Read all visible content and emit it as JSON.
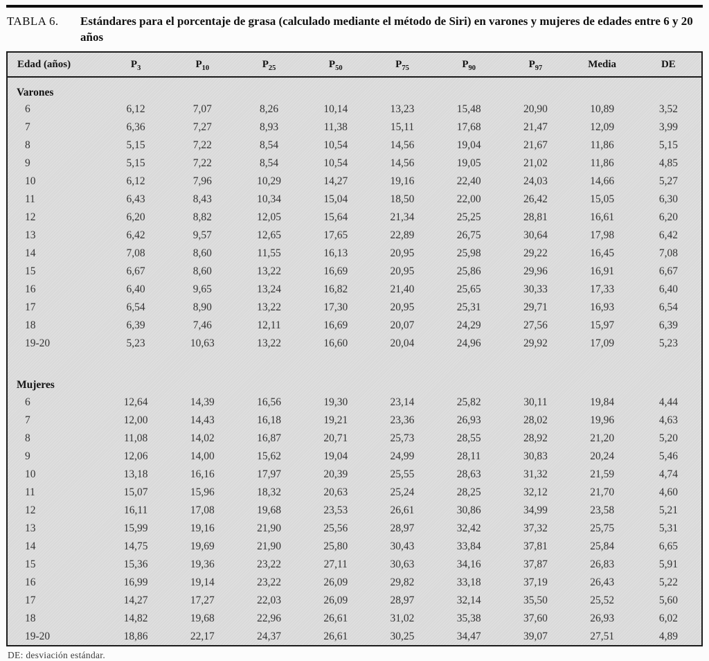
{
  "document": {
    "caption_label": "TABLA 6.",
    "caption_text": "Estándares para el porcentaje de grasa (calculado mediante el método de Siri) en varones y mujeres de edades entre 6 y 20 años",
    "footnote": "DE: desviación estándar."
  },
  "colors": {
    "table_bg": "#d9d9d9",
    "border": "#1b1b1b",
    "text": "#333333"
  },
  "table": {
    "headers": [
      {
        "text": "Edad (años)",
        "sub": ""
      },
      {
        "text": "P",
        "sub": "3"
      },
      {
        "text": "P",
        "sub": "10"
      },
      {
        "text": "P",
        "sub": "25"
      },
      {
        "text": "P",
        "sub": "50"
      },
      {
        "text": "P",
        "sub": "75"
      },
      {
        "text": "P",
        "sub": "90"
      },
      {
        "text": "P",
        "sub": "97"
      },
      {
        "text": "Media",
        "sub": ""
      },
      {
        "text": "DE",
        "sub": ""
      }
    ],
    "sections": [
      {
        "label": "Varones",
        "rows": [
          {
            "edad": "6",
            "values": [
              "6,12",
              "7,07",
              "8,26",
              "10,14",
              "13,23",
              "15,48",
              "20,90",
              "10,89",
              "3,52"
            ]
          },
          {
            "edad": "7",
            "values": [
              "6,36",
              "7,27",
              "8,93",
              "11,38",
              "15,11",
              "17,68",
              "21,47",
              "12,09",
              "3,99"
            ]
          },
          {
            "edad": "8",
            "values": [
              "5,15",
              "7,22",
              "8,54",
              "10,54",
              "14,56",
              "19,04",
              "21,67",
              "11,86",
              "5,15"
            ]
          },
          {
            "edad": "9",
            "values": [
              "5,15",
              "7,22",
              "8,54",
              "10,54",
              "14,56",
              "19,05",
              "21,02",
              "11,86",
              "4,85"
            ]
          },
          {
            "edad": "10",
            "values": [
              "6,12",
              "7,96",
              "10,29",
              "14,27",
              "19,16",
              "22,40",
              "24,03",
              "14,66",
              "5,27"
            ]
          },
          {
            "edad": "11",
            "values": [
              "6,43",
              "8,43",
              "10,34",
              "15,04",
              "18,50",
              "22,00",
              "26,42",
              "15,05",
              "6,30"
            ]
          },
          {
            "edad": "12",
            "values": [
              "6,20",
              "8,82",
              "12,05",
              "15,64",
              "21,34",
              "25,25",
              "28,81",
              "16,61",
              "6,20"
            ]
          },
          {
            "edad": "13",
            "values": [
              "6,42",
              "9,57",
              "12,65",
              "17,65",
              "22,89",
              "26,75",
              "30,64",
              "17,98",
              "6,42"
            ]
          },
          {
            "edad": "14",
            "values": [
              "7,08",
              "8,60",
              "11,55",
              "16,13",
              "20,95",
              "25,98",
              "29,22",
              "16,45",
              "7,08"
            ]
          },
          {
            "edad": "15",
            "values": [
              "6,67",
              "8,60",
              "13,22",
              "16,69",
              "20,95",
              "25,86",
              "29,96",
              "16,91",
              "6,67"
            ]
          },
          {
            "edad": "16",
            "values": [
              "6,40",
              "9,65",
              "13,24",
              "16,82",
              "21,40",
              "25,65",
              "30,33",
              "17,33",
              "6,40"
            ]
          },
          {
            "edad": "17",
            "values": [
              "6,54",
              "8,90",
              "13,22",
              "17,30",
              "20,95",
              "25,31",
              "29,71",
              "16,93",
              "6,54"
            ]
          },
          {
            "edad": "18",
            "values": [
              "6,39",
              "7,46",
              "12,11",
              "16,69",
              "20,07",
              "24,29",
              "27,56",
              "15,97",
              "6,39"
            ]
          },
          {
            "edad": "19-20",
            "values": [
              "5,23",
              "10,63",
              "13,22",
              "16,60",
              "20,04",
              "24,96",
              "29,92",
              "17,09",
              "5,23"
            ]
          }
        ]
      },
      {
        "label": "Mujeres",
        "rows": [
          {
            "edad": "6",
            "values": [
              "12,64",
              "14,39",
              "16,56",
              "19,30",
              "23,14",
              "25,82",
              "30,11",
              "19,84",
              "4,44"
            ]
          },
          {
            "edad": "7",
            "values": [
              "12,00",
              "14,43",
              "16,18",
              "19,21",
              "23,36",
              "26,93",
              "28,02",
              "19,96",
              "4,63"
            ]
          },
          {
            "edad": "8",
            "values": [
              "11,08",
              "14,02",
              "16,87",
              "20,71",
              "25,73",
              "28,55",
              "28,92",
              "21,20",
              "5,20"
            ]
          },
          {
            "edad": "9",
            "values": [
              "12,06",
              "14,00",
              "15,62",
              "19,04",
              "24,99",
              "28,11",
              "30,83",
              "20,24",
              "5,46"
            ]
          },
          {
            "edad": "10",
            "values": [
              "13,18",
              "16,16",
              "17,97",
              "20,39",
              "25,55",
              "28,63",
              "31,32",
              "21,59",
              "4,74"
            ]
          },
          {
            "edad": "11",
            "values": [
              "15,07",
              "15,96",
              "18,32",
              "20,63",
              "25,24",
              "28,25",
              "32,12",
              "21,70",
              "4,60"
            ]
          },
          {
            "edad": "12",
            "values": [
              "16,11",
              "17,08",
              "19,68",
              "23,53",
              "26,61",
              "30,86",
              "34,99",
              "23,58",
              "5,21"
            ]
          },
          {
            "edad": "13",
            "values": [
              "15,99",
              "19,16",
              "21,90",
              "25,56",
              "28,97",
              "32,42",
              "37,32",
              "25,75",
              "5,31"
            ]
          },
          {
            "edad": "14",
            "values": [
              "14,75",
              "19,69",
              "21,90",
              "25,80",
              "30,43",
              "33,84",
              "37,81",
              "25,84",
              "6,65"
            ]
          },
          {
            "edad": "15",
            "values": [
              "15,36",
              "19,36",
              "23,22",
              "27,11",
              "30,63",
              "34,16",
              "37,87",
              "26,83",
              "5,91"
            ]
          },
          {
            "edad": "16",
            "values": [
              "16,99",
              "19,14",
              "23,22",
              "26,09",
              "29,82",
              "33,18",
              "37,19",
              "26,43",
              "5,22"
            ]
          },
          {
            "edad": "17",
            "values": [
              "14,27",
              "17,27",
              "22,03",
              "26,09",
              "28,97",
              "32,14",
              "35,50",
              "25,52",
              "5,60"
            ]
          },
          {
            "edad": "18",
            "values": [
              "14,82",
              "19,68",
              "22,96",
              "26,61",
              "31,02",
              "35,38",
              "37,60",
              "26,93",
              "6,02"
            ]
          },
          {
            "edad": "19-20",
            "values": [
              "18,86",
              "22,17",
              "24,37",
              "26,61",
              "30,25",
              "34,47",
              "39,07",
              "27,51",
              "4,89"
            ]
          }
        ]
      }
    ]
  }
}
